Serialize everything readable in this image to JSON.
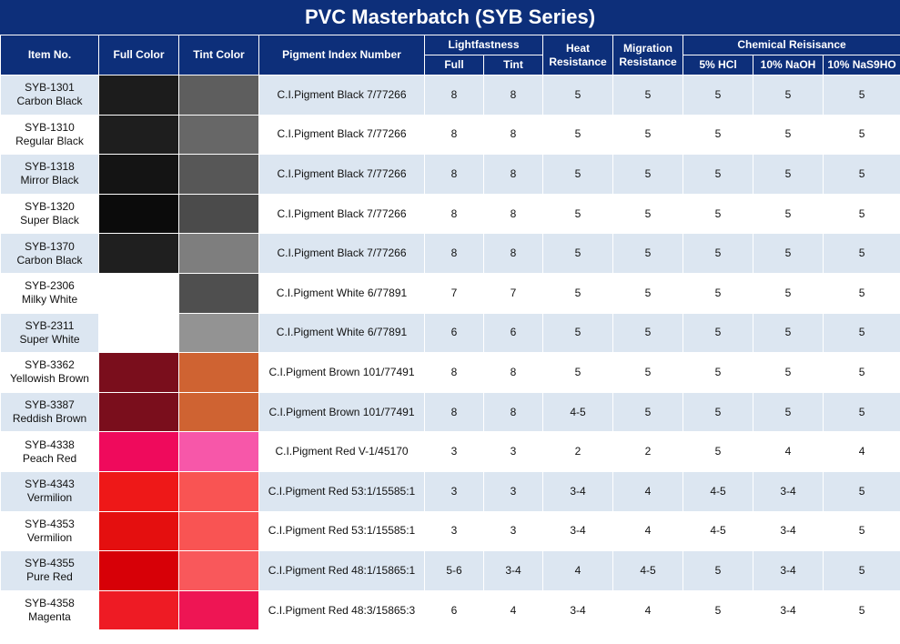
{
  "title": "PVC Masterbatch (SYB Series)",
  "headers": {
    "item_no": "Item No.",
    "full_color": "Full Color",
    "tint_color": "Tint Color",
    "pigment_index": "Pigment Index Number",
    "lightfastness": "Lightfastness",
    "lf_full": "Full",
    "lf_tint": "Tint",
    "heat_resistance": "Heat Resistance",
    "migration_resistance": "Migration Resistance",
    "chemical_resistance": "Chemical Reisisance",
    "hcl": "5% HCl",
    "naoh": "10% NaOH",
    "nas": "10% NaS9HO"
  },
  "rows": [
    {
      "code": "SYB-1301",
      "name": "Carbon Black",
      "full_color": "#1c1c1c",
      "tint_color": "#5e5e5e",
      "pigment": "C.I.Pigment Black 7/77266",
      "lf_full": "8",
      "lf_tint": "8",
      "heat": "5",
      "migration": "5",
      "hcl": "5",
      "naoh": "5",
      "nas": "5"
    },
    {
      "code": "SYB-1310",
      "name": "Regular Black",
      "full_color": "#1e1e1e",
      "tint_color": "#676767",
      "pigment": "C.I.Pigment Black 7/77266",
      "lf_full": "8",
      "lf_tint": "8",
      "heat": "5",
      "migration": "5",
      "hcl": "5",
      "naoh": "5",
      "nas": "5"
    },
    {
      "code": "SYB-1318",
      "name": "Mirror Black",
      "full_color": "#141414",
      "tint_color": "#575757",
      "pigment": "C.I.Pigment Black 7/77266",
      "lf_full": "8",
      "lf_tint": "8",
      "heat": "5",
      "migration": "5",
      "hcl": "5",
      "naoh": "5",
      "nas": "5"
    },
    {
      "code": "SYB-1320",
      "name": "Super Black",
      "full_color": "#0b0b0b",
      "tint_color": "#4b4b4b",
      "pigment": "C.I.Pigment Black 7/77266",
      "lf_full": "8",
      "lf_tint": "8",
      "heat": "5",
      "migration": "5",
      "hcl": "5",
      "naoh": "5",
      "nas": "5"
    },
    {
      "code": "SYB-1370",
      "name": "Carbon Black",
      "full_color": "#1f1f1f",
      "tint_color": "#7e7e7e",
      "pigment": "C.I.Pigment Black 7/77266",
      "lf_full": "8",
      "lf_tint": "8",
      "heat": "5",
      "migration": "5",
      "hcl": "5",
      "naoh": "5",
      "nas": "5"
    },
    {
      "code": "SYB-2306",
      "name": "Milky White",
      "full_color": "#ffffff",
      "tint_color": "#4f4f4f",
      "pigment": "C.I.Pigment White 6/77891",
      "lf_full": "7",
      "lf_tint": "7",
      "heat": "5",
      "migration": "5",
      "hcl": "5",
      "naoh": "5",
      "nas": "5"
    },
    {
      "code": "SYB-2311",
      "name": "Super White",
      "full_color": "#ffffff",
      "tint_color": "#939393",
      "pigment": "C.I.Pigment White 6/77891",
      "lf_full": "6",
      "lf_tint": "6",
      "heat": "5",
      "migration": "5",
      "hcl": "5",
      "naoh": "5",
      "nas": "5"
    },
    {
      "code": "SYB-3362",
      "name": "Yellowish Brown",
      "full_color": "#7a0e1c",
      "tint_color": "#cf6332",
      "pigment": "C.I.Pigment Brown 101/77491",
      "lf_full": "8",
      "lf_tint": "8",
      "heat": "5",
      "migration": "5",
      "hcl": "5",
      "naoh": "5",
      "nas": "5"
    },
    {
      "code": "SYB-3387",
      "name": "Reddish Brown",
      "full_color": "#7a0e1c",
      "tint_color": "#cf6332",
      "pigment": "C.I.Pigment Brown 101/77491",
      "lf_full": "8",
      "lf_tint": "8",
      "heat": "4-5",
      "migration": "5",
      "hcl": "5",
      "naoh": "5",
      "nas": "5"
    },
    {
      "code": "SYB-4338",
      "name": "Peach Red",
      "full_color": "#ef0a5c",
      "tint_color": "#f757a9",
      "pigment": "C.I.Pigment Red V-1/45170",
      "lf_full": "3",
      "lf_tint": "3",
      "heat": "2",
      "migration": "2",
      "hcl": "5",
      "naoh": "4",
      "nas": "4"
    },
    {
      "code": "SYB-4343",
      "name": "Vermilion",
      "full_color": "#ee1818",
      "tint_color": "#f95453",
      "pigment": "C.I.Pigment Red 53:1/15585:1",
      "lf_full": "3",
      "lf_tint": "3",
      "heat": "3-4",
      "migration": "4",
      "hcl": "4-5",
      "naoh": "3-4",
      "nas": "5"
    },
    {
      "code": "SYB-4353",
      "name": "Vermilion",
      "full_color": "#e40f0f",
      "tint_color": "#f95453",
      "pigment": "C.I.Pigment Red 53:1/15585:1",
      "lf_full": "3",
      "lf_tint": "3",
      "heat": "3-4",
      "migration": "4",
      "hcl": "4-5",
      "naoh": "3-4",
      "nas": "5"
    },
    {
      "code": "SYB-4355",
      "name": "Pure Red",
      "full_color": "#d70007",
      "tint_color": "#f9585b",
      "pigment": "C.I.Pigment Red 48:1/15865:1",
      "lf_full": "5-6",
      "lf_tint": "3-4",
      "heat": "4",
      "migration": "4-5",
      "hcl": "5",
      "naoh": "3-4",
      "nas": "5"
    },
    {
      "code": "SYB-4358",
      "name": "Magenta",
      "full_color": "#ee1b24",
      "tint_color": "#ee1554",
      "pigment": "C.I.Pigment Red 48:3/15865:3",
      "lf_full": "6",
      "lf_tint": "4",
      "heat": "3-4",
      "migration": "4",
      "hcl": "5",
      "naoh": "3-4",
      "nas": "5"
    }
  ]
}
